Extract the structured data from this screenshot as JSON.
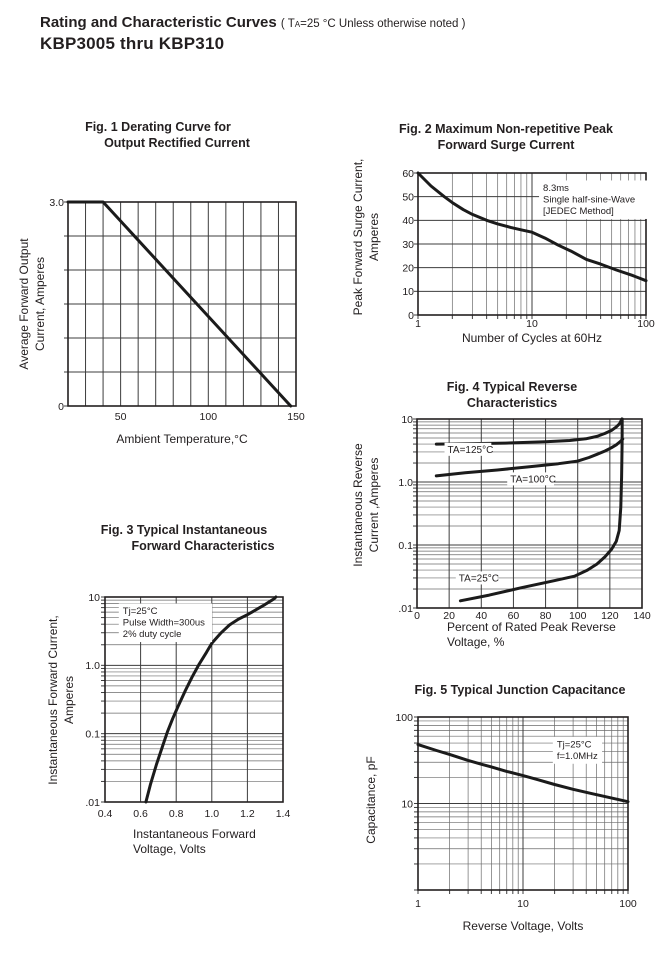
{
  "header": {
    "title": "Rating and Characteristic Curves",
    "cond_open": "( T",
    "cond_sub": "A",
    "cond_rest": "=25 °C Unless otherwise noted )",
    "part_range": "KBP3005 thru KBP310"
  },
  "colors": {
    "ink": "#242021",
    "curve": "#1b1b1b",
    "grid_major": "#3d3d3d",
    "grid_minor": "#6b6b6b",
    "border": "#231f20",
    "background": "#ffffff"
  },
  "chart_data": [
    {
      "id": "fig1",
      "type": "line",
      "title_lines": [
        "Fig. 1 Derating Curve for",
        "Output Rectified Current"
      ],
      "x": {
        "scale": "linear",
        "min": 20,
        "max": 150,
        "grid_step": 10,
        "ticks": [
          50,
          100,
          150
        ],
        "tick_labels": [
          "50",
          "100",
          "150"
        ],
        "title_lines": [
          "Ambient Temperature,°C"
        ]
      },
      "y": {
        "scale": "linear",
        "min": 0,
        "max": 3,
        "grid_step": 0.5,
        "ticks": [
          3,
          0
        ],
        "tick_labels": [
          "3.0",
          "0"
        ],
        "title_lines": [
          "Average Forward Output",
          "Current, Amperes"
        ]
      },
      "series": [
        {
          "name": "derating-curve",
          "points": [
            [
              20,
              3
            ],
            [
              40,
              3
            ],
            [
              147,
              0
            ]
          ]
        }
      ],
      "annotations": [],
      "series_labels": []
    },
    {
      "id": "fig2",
      "type": "line",
      "title_lines": [
        "Fig. 2 Maximum Non-repetitive Peak",
        "Forward Surge Current"
      ],
      "x": {
        "scale": "log",
        "min": 1,
        "max": 100,
        "ticks": [
          1,
          10,
          100
        ],
        "tick_labels": [
          "1",
          "10",
          "100"
        ],
        "title_lines": [
          "Number of Cycles at 60Hz"
        ]
      },
      "y": {
        "scale": "linear",
        "min": 0,
        "max": 60,
        "grid_step": 10,
        "ticks": [
          60,
          50,
          40,
          30,
          20,
          10,
          0
        ],
        "tick_labels": [
          "60",
          "50",
          "40",
          "30",
          "20",
          "10",
          "0"
        ],
        "title_lines": [
          "Peak Forward Surge Current,",
          "Amperes"
        ]
      },
      "series": [
        {
          "name": "surge-current",
          "points": [
            [
              1,
              60
            ],
            [
              1.3,
              54.5
            ],
            [
              1.7,
              50
            ],
            [
              2,
              47.5
            ],
            [
              2.5,
              44.5
            ],
            [
              3,
              42.5
            ],
            [
              4,
              40
            ],
            [
              5,
              38.5
            ],
            [
              6.5,
              37
            ],
            [
              8,
              36
            ],
            [
              10,
              35
            ],
            [
              13,
              32.5
            ],
            [
              17,
              29.5
            ],
            [
              22,
              27
            ],
            [
              30,
              23.5
            ],
            [
              40,
              21.5
            ],
            [
              55,
              19
            ],
            [
              75,
              16.8
            ],
            [
              100,
              14.5
            ]
          ]
        }
      ],
      "annotations": [
        {
          "lines": [
            "8.3ms",
            "Single half-sine-Wave",
            "[JEDEC Method]"
          ],
          "x": 12.5,
          "y": 56
        }
      ],
      "series_labels": []
    },
    {
      "id": "fig3",
      "type": "line",
      "title_lines": [
        "Fig. 3 Typical Instantaneous",
        "Forward Characteristics"
      ],
      "x": {
        "scale": "linear",
        "min": 0.4,
        "max": 1.4,
        "grid_step": 0.2,
        "ticks": [
          0.4,
          0.6,
          0.8,
          1.0,
          1.2,
          1.4
        ],
        "tick_labels": [
          "0.4",
          "0.6",
          "0.8",
          "1.0",
          "1.2",
          "1.4"
        ],
        "title_lines": [
          "Instantaneous Forward",
          "Voltage, Volts"
        ]
      },
      "y": {
        "scale": "log",
        "min": 0.01,
        "max": 10,
        "ticks": [
          10,
          1,
          0.1,
          0.01
        ],
        "tick_labels": [
          "10",
          "1.0",
          "0.1",
          ".01"
        ],
        "title_lines": [
          "Instantaneous Forward Current,",
          "Amperes"
        ]
      },
      "series": [
        {
          "name": "forward-characteristic",
          "points": [
            [
              0.63,
              0.01
            ],
            [
              0.655,
              0.018
            ],
            [
              0.69,
              0.036
            ],
            [
              0.72,
              0.062
            ],
            [
              0.75,
              0.105
            ],
            [
              0.78,
              0.165
            ],
            [
              0.81,
              0.25
            ],
            [
              0.85,
              0.42
            ],
            [
              0.89,
              0.68
            ],
            [
              0.93,
              1.05
            ],
            [
              0.97,
              1.55
            ],
            [
              1.0,
              2.1
            ],
            [
              1.05,
              2.95
            ],
            [
              1.1,
              3.9
            ],
            [
              1.15,
              4.75
            ],
            [
              1.2,
              5.5
            ],
            [
              1.25,
              6.55
            ],
            [
              1.3,
              7.8
            ],
            [
              1.35,
              9.4
            ],
            [
              1.36,
              10
            ]
          ]
        }
      ],
      "annotations": [
        {
          "lines": [
            "Tj=25°C",
            "Pulse Width=300us",
            "2% duty cycle"
          ],
          "x": 0.5,
          "y": 7.5
        }
      ],
      "series_labels": []
    },
    {
      "id": "fig4",
      "type": "line",
      "title_lines": [
        "Fig. 4 Typical Reverse",
        "Characteristics"
      ],
      "x": {
        "scale": "linear",
        "min": 0,
        "max": 140,
        "grid_step": 20,
        "ticks": [
          0,
          20,
          40,
          60,
          80,
          100,
          120,
          140
        ],
        "tick_labels": [
          "0",
          "20",
          "40",
          "60",
          "80",
          "100",
          "120",
          "140"
        ],
        "title_lines": [
          "Percent of Rated Peak Reverse",
          "Voltage, %"
        ]
      },
      "y": {
        "scale": "log",
        "min": 0.01,
        "max": 10,
        "ticks": [
          10,
          1,
          0.1,
          0.01
        ],
        "tick_labels": [
          "10",
          "1.0",
          "0.1",
          ".01"
        ],
        "title_lines": [
          "Instantaneous Reverse",
          "Current ,Amperes"
        ]
      },
      "series": [
        {
          "name": "ta-125c",
          "points": [
            [
              12,
              4.0
            ],
            [
              30,
              4.05
            ],
            [
              55,
              4.15
            ],
            [
              80,
              4.35
            ],
            [
              95,
              4.55
            ],
            [
              105,
              4.85
            ],
            [
              112,
              5.3
            ],
            [
              117,
              5.9
            ],
            [
              121,
              6.6
            ],
            [
              124,
              7.5
            ],
            [
              126,
              8.4
            ],
            [
              127.5,
              10
            ]
          ]
        },
        {
          "name": "ta-100c",
          "points": [
            [
              12,
              1.25
            ],
            [
              30,
              1.4
            ],
            [
              50,
              1.55
            ],
            [
              70,
              1.75
            ],
            [
              88,
              1.95
            ],
            [
              100,
              2.15
            ],
            [
              107,
              2.45
            ],
            [
              112,
              2.75
            ],
            [
              117,
              3.1
            ],
            [
              121,
              3.5
            ],
            [
              124,
              3.9
            ],
            [
              126.5,
              4.4
            ],
            [
              128,
              4.8
            ]
          ]
        },
        {
          "name": "ta-25c",
          "points": [
            [
              27,
              0.013
            ],
            [
              45,
              0.016
            ],
            [
              65,
              0.021
            ],
            [
              85,
              0.027
            ],
            [
              98,
              0.032
            ],
            [
              106,
              0.04
            ],
            [
              112,
              0.05
            ],
            [
              117,
              0.065
            ],
            [
              121,
              0.085
            ],
            [
              124,
              0.115
            ],
            [
              125.8,
              0.17
            ],
            [
              126.8,
              0.4
            ],
            [
              127.3,
              1.2
            ],
            [
              127.6,
              4
            ],
            [
              127.7,
              10
            ]
          ]
        }
      ],
      "annotations": [],
      "series_labels": [
        {
          "text": "TA=125°C",
          "x": 19,
          "y": 3.3
        },
        {
          "text": "TA=100°C",
          "x": 58,
          "y": 1.12
        },
        {
          "text": "TA=25°C",
          "x": 26,
          "y": 0.03
        }
      ]
    },
    {
      "id": "fig5",
      "type": "line",
      "title_lines": [
        "Fig. 5 Typical Junction Capacitance"
      ],
      "x": {
        "scale": "log",
        "min": 1,
        "max": 100,
        "ticks": [
          1,
          10,
          100
        ],
        "tick_labels": [
          "1",
          "10",
          "100"
        ],
        "title_lines": [
          "Reverse Voltage, Volts"
        ]
      },
      "y": {
        "scale": "log",
        "min": 1,
        "max": 100,
        "ticks": [
          100,
          10
        ],
        "tick_labels": [
          "100",
          "10"
        ],
        "title_lines": [
          "Capacitance, pF"
        ]
      },
      "series": [
        {
          "name": "junction-capacitance",
          "points": [
            [
              1,
              48
            ],
            [
              1.5,
              41
            ],
            [
              2,
              37
            ],
            [
              3,
              31.5
            ],
            [
              4,
              28.5
            ],
            [
              5,
              26.5
            ],
            [
              7,
              23.5
            ],
            [
              10,
              21
            ],
            [
              14,
              18.8
            ],
            [
              20,
              16.6
            ],
            [
              30,
              14.6
            ],
            [
              45,
              13
            ],
            [
              65,
              11.8
            ],
            [
              100,
              10.5
            ]
          ]
        }
      ],
      "annotations": [
        {
          "lines": [
            "Tj=25°C",
            "f=1.0MHz"
          ],
          "x": 21,
          "y": 56
        }
      ],
      "series_labels": []
    }
  ]
}
